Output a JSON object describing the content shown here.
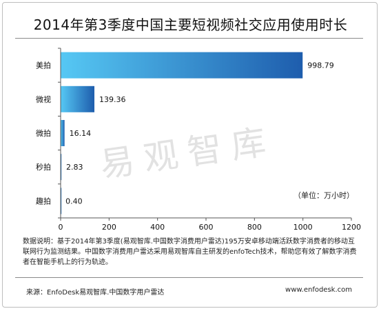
{
  "title": "2014年第3季度中国主要短视频社交应用使用时长",
  "unit_note": "（单位：万小时）",
  "watermark": "易观智库",
  "note": "数据说明：基于2014年第3季度(易观智库.中国数字消费用户雷达)195万安卓移动端活跃数字消费者的移动互联网行为监测结果。中国数字消费用户雷达采用易观智库自主研发的enfoTech技术，帮助您有效了解数字消费者在智能手机上的行为轨迹。",
  "source": "来源：EnfoDesk易观智库.中国数字用户雷达",
  "site": "www.enfodesk.com",
  "colors": {
    "bar_light": "#56c8f4",
    "bar_dark": "#1e5dad",
    "axis": "#555555"
  },
  "chart_data": {
    "type": "bar",
    "orientation": "horizontal",
    "title": "2014年第3季度中国主要短视频社交应用使用时长",
    "categories": [
      "美拍",
      "微视",
      "微拍",
      "秒拍",
      "趣拍"
    ],
    "values": [
      998.79,
      139.36,
      16.14,
      2.83,
      0.4
    ],
    "value_labels": [
      "998.79",
      "139.36",
      "16.14",
      "2.83",
      "0.40"
    ],
    "xlim": [
      0,
      1200
    ],
    "xticks": [
      0,
      200,
      400,
      600,
      800,
      1000,
      1200
    ],
    "unit": "（单位：万小时）",
    "grid": false
  }
}
